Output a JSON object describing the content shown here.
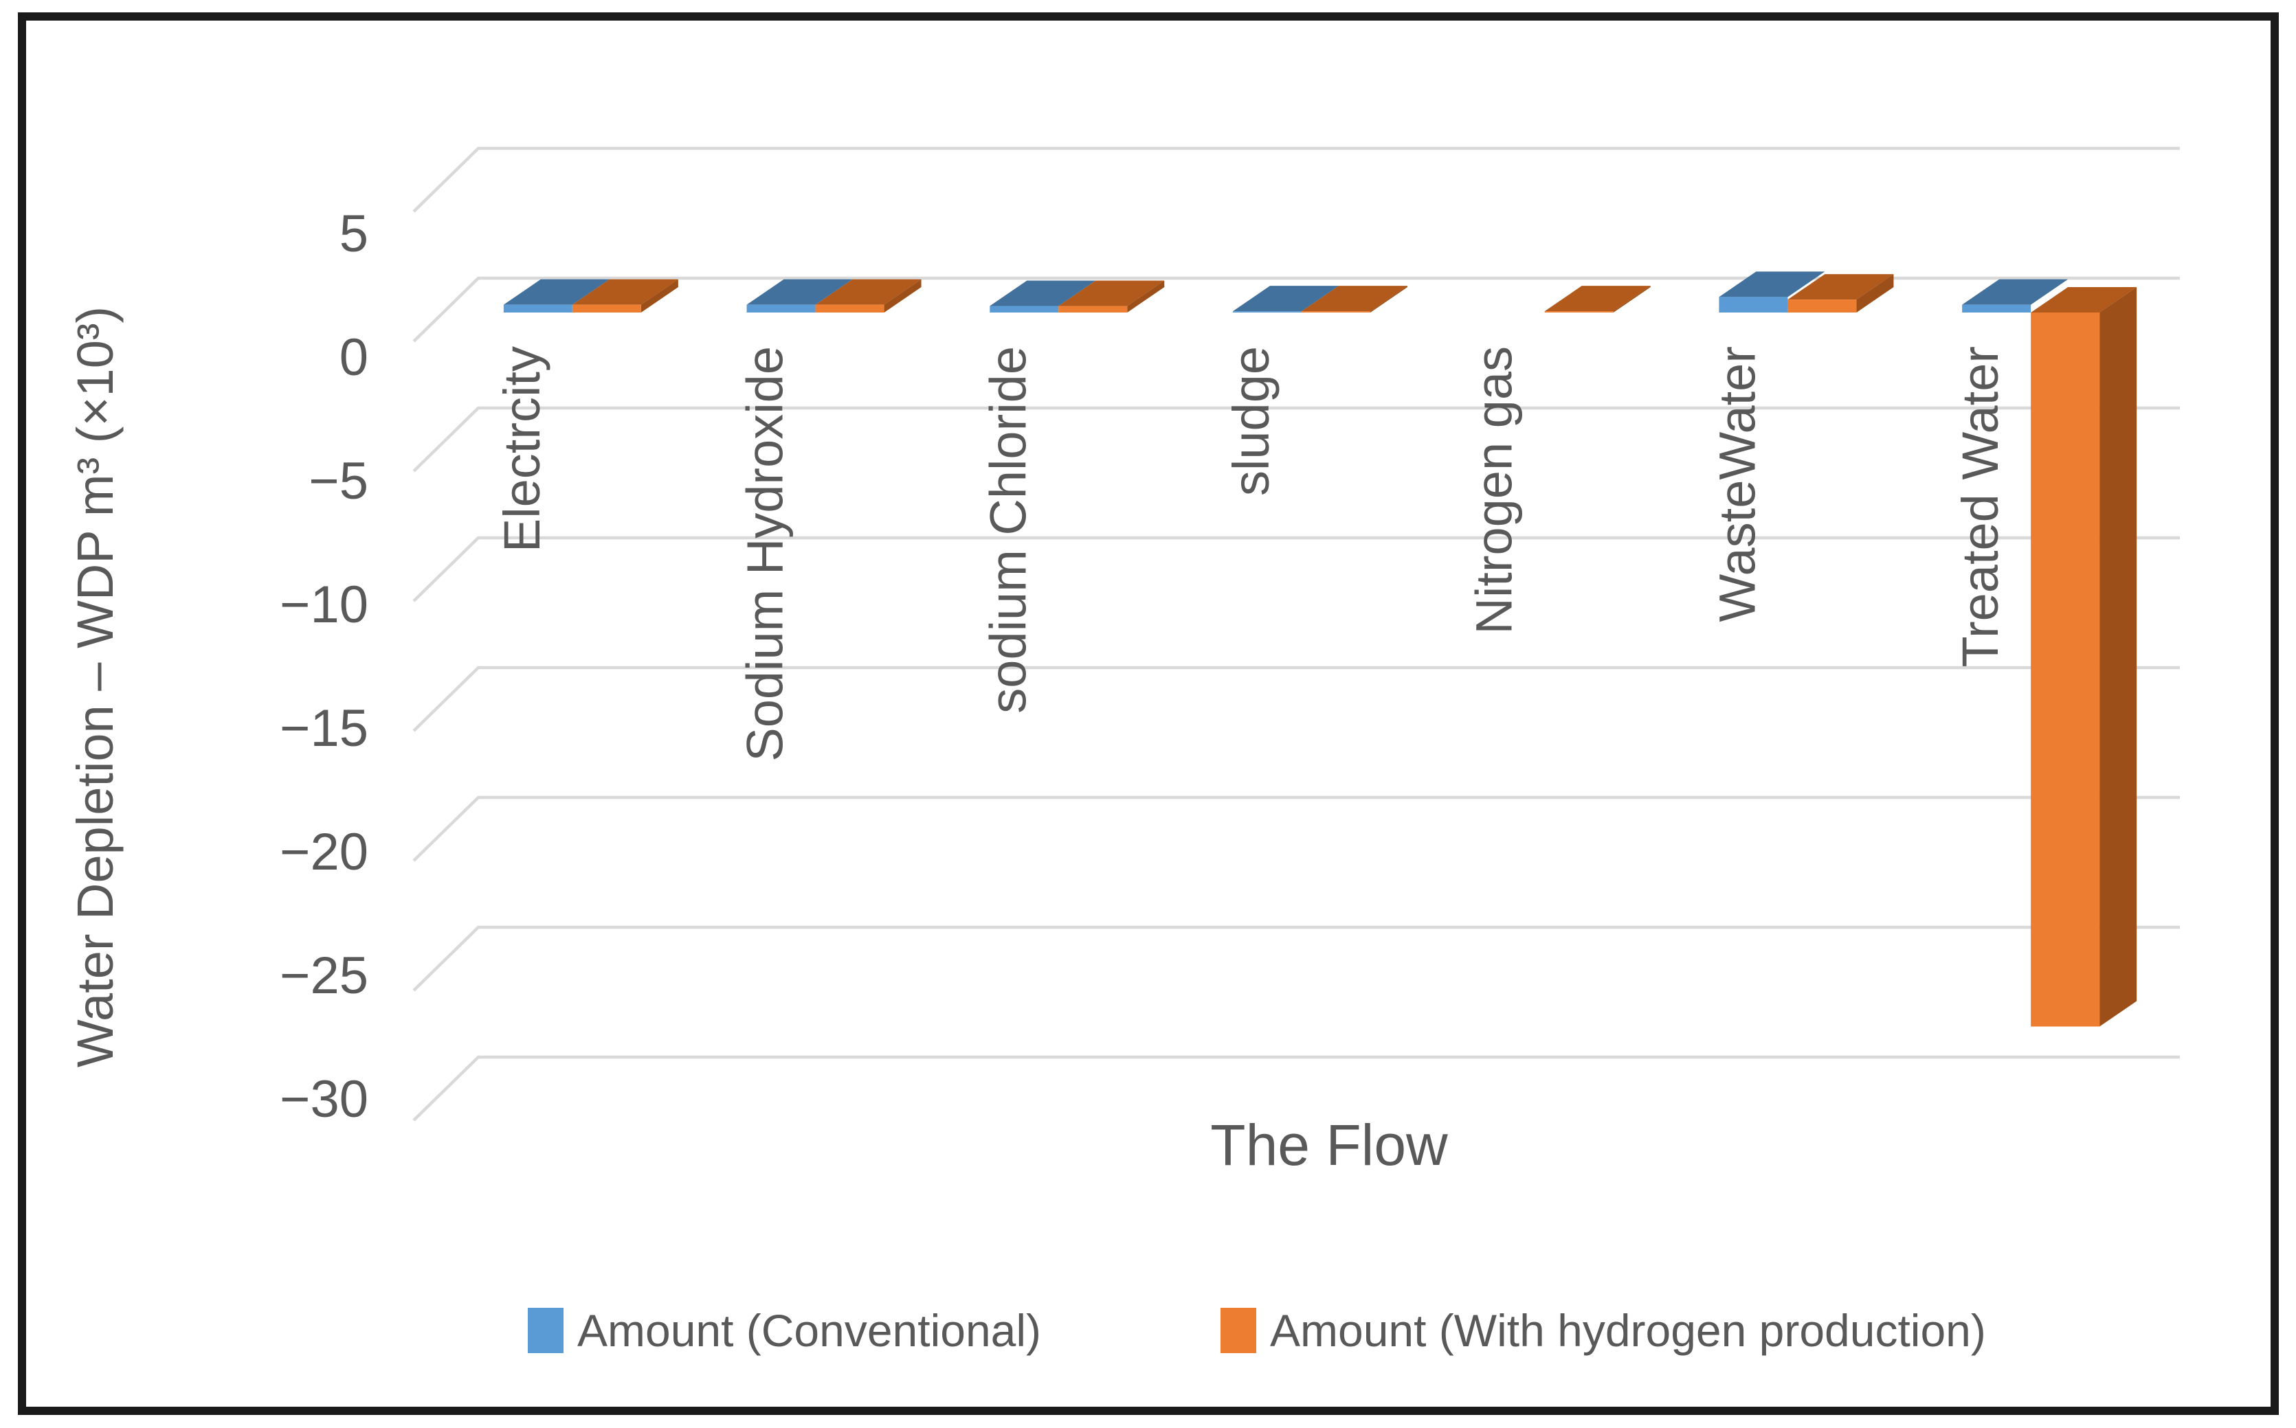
{
  "chart_data": {
    "type": "bar",
    "projection": "3d",
    "title": "",
    "xlabel": "The Flow",
    "ylabel": "Water Depletion – WDP m³ (×10³)",
    "ylim": [
      -30,
      5
    ],
    "ytick_step": 5,
    "yticks": [
      5,
      0,
      -5,
      -10,
      -15,
      -20,
      -25,
      -30
    ],
    "grid": true,
    "legend_position": "bottom",
    "categories": [
      "Electrcity",
      "Sodium Hydroxide",
      "sodium Chloride",
      "sludge",
      "Nitrogen gas",
      "WasteWater",
      "Treated Water"
    ],
    "series": [
      {
        "name": "Amount (Conventional)",
        "color": "#5B9BD5",
        "color_top": "#41719C",
        "color_side": "#35618D",
        "values": [
          0.3,
          0.3,
          0.25,
          0.05,
          null,
          0.6,
          0.3
        ]
      },
      {
        "name": "Amount (With hydrogen production)",
        "color": "#ED7D31",
        "color_top": "#B25A1B",
        "color_side": "#9C4F18",
        "values": [
          0.3,
          0.3,
          0.25,
          0.05,
          0.05,
          0.5,
          -27.5
        ]
      }
    ],
    "colors": {
      "text": "#595959",
      "gridline": "#D9D9D9",
      "frame_border": "#1a1a1a",
      "background": "#ffffff"
    }
  }
}
